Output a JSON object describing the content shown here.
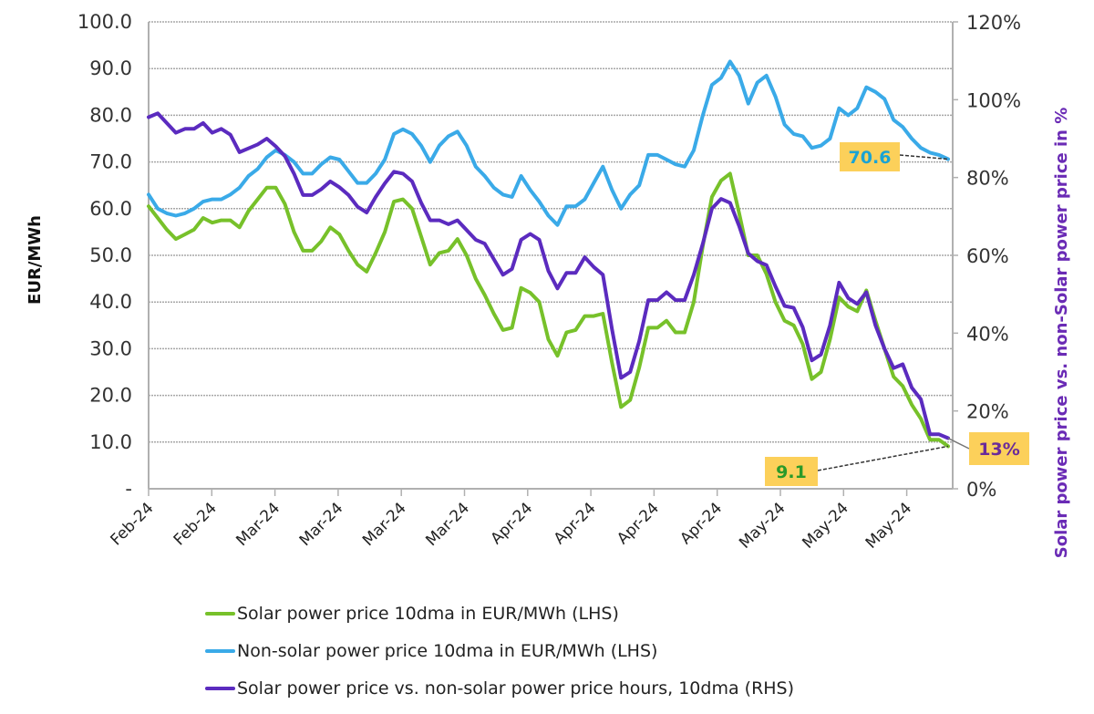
{
  "chart_data": {
    "type": "line",
    "title": "",
    "xlabel": "",
    "ylabel": "EUR/MWh",
    "ylabel_right": "Solar power price vs. non-Solar power price in %",
    "ylim": [
      0,
      100
    ],
    "ylim_right": [
      0,
      120
    ],
    "y_ticks": [
      "-",
      "10.0",
      "20.0",
      "30.0",
      "40.0",
      "50.0",
      "60.0",
      "70.0",
      "80.0",
      "90.0",
      "100.0"
    ],
    "y_ticks_right": [
      "0%",
      "20%",
      "40%",
      "60%",
      "80%",
      "100%",
      "120%"
    ],
    "x_tick_labels": [
      "Feb-24",
      "Feb-24",
      "Mar-24",
      "Mar-24",
      "Mar-24",
      "Mar-24",
      "Apr-24",
      "Apr-24",
      "Apr-24",
      "Apr-24",
      "May-24",
      "May-24",
      "May-24"
    ],
    "grid": true,
    "legend_position": "bottom",
    "series": [
      {
        "name": "Solar power price 10dma in EUR/MWh (LHS)",
        "axis": "left",
        "color": "#77c12a",
        "values": [
          60.5,
          58,
          55.5,
          53.5,
          54.5,
          55.5,
          58,
          57,
          57.5,
          57.5,
          56,
          59.5,
          62,
          64.5,
          64.5,
          61,
          55,
          51,
          51,
          53,
          56,
          54.5,
          51,
          48,
          46.5,
          50.5,
          55,
          61.5,
          62,
          60,
          54,
          48,
          50.5,
          51,
          53.5,
          50,
          45,
          41.5,
          37.5,
          34,
          34.5,
          43,
          42,
          40,
          32,
          28.5,
          33.5,
          34,
          37,
          37,
          37.5,
          27,
          17.5,
          19,
          26,
          34.5,
          34.5,
          36,
          33.5,
          33.5,
          40,
          52,
          62.5,
          66,
          67.5,
          59,
          50,
          50,
          46,
          40,
          36,
          35,
          31,
          23.5,
          25,
          32,
          41,
          39,
          38,
          42.5,
          36,
          30,
          24,
          22,
          18,
          15,
          10.5,
          10.5,
          9.1
        ]
      },
      {
        "name": "Non-solar power price 10dma in EUR/MWh (LHS)",
        "axis": "left",
        "color": "#3aaae8",
        "values": [
          63,
          60,
          59,
          58.5,
          59,
          60,
          61.5,
          62,
          62,
          63,
          64.5,
          67,
          68.5,
          71,
          72.5,
          71.5,
          70,
          67.5,
          67.5,
          69.5,
          71,
          70.5,
          68,
          65.5,
          65.5,
          67.5,
          70.5,
          76,
          77,
          76,
          73.5,
          70,
          73.5,
          75.5,
          76.5,
          73.5,
          69,
          67,
          64.5,
          63,
          62.5,
          67,
          64,
          61.5,
          58.5,
          56.5,
          60.5,
          60.5,
          62,
          65.5,
          69,
          64,
          60,
          63,
          65,
          71.5,
          71.5,
          70.5,
          69.5,
          69,
          72.5,
          80,
          86.5,
          88,
          91.5,
          88.5,
          82.5,
          87,
          88.5,
          84,
          78,
          76,
          75.5,
          73,
          73.5,
          75,
          81.5,
          80,
          81.5,
          86,
          85,
          83.5,
          79,
          77.5,
          75,
          73,
          72,
          71.5,
          70.6
        ]
      },
      {
        "name": "Solar power price vs. non-solar power price hours, 10dma (RHS)",
        "axis": "right",
        "color": "#5b2bbf",
        "values": [
          95.5,
          96.5,
          94,
          91.5,
          92.5,
          92.5,
          94,
          91.5,
          92.5,
          91,
          86.5,
          87.5,
          88.5,
          90,
          88,
          85.5,
          81,
          75.5,
          75.5,
          77,
          79,
          77.5,
          75.5,
          72.5,
          71,
          75,
          78.5,
          81.5,
          81,
          79,
          73.5,
          69,
          69,
          68,
          69,
          66.5,
          64,
          63,
          59,
          55,
          56.5,
          64,
          65.5,
          64,
          56,
          51.5,
          55.5,
          55.5,
          59.5,
          57,
          55,
          41,
          28.5,
          30,
          38,
          48.5,
          48.5,
          50.5,
          48.5,
          48.5,
          55,
          63,
          72,
          74.5,
          73.5,
          67.5,
          60.5,
          58.5,
          57.5,
          52,
          47,
          46.5,
          41.5,
          33,
          34.5,
          42,
          53,
          49,
          47.5,
          50.5,
          42,
          36,
          31,
          32,
          26,
          23,
          14,
          14,
          13
        ]
      }
    ],
    "annotations": [
      {
        "label": "70.6",
        "series": "Non-solar power price 10dma in EUR/MWh (LHS)",
        "text_color": "#1aa3d4",
        "bg_color": "#fcd05a"
      },
      {
        "label": "9.1",
        "series": "Solar power price 10dma in EUR/MWh (LHS)",
        "text_color": "#2a9a2a",
        "bg_color": "#fcd05a"
      },
      {
        "label": "13%",
        "series": "Solar power price vs. non-solar power price hours, 10dma (RHS)",
        "text_color": "#6a2b9a",
        "bg_color": "#fcd05a"
      }
    ]
  }
}
